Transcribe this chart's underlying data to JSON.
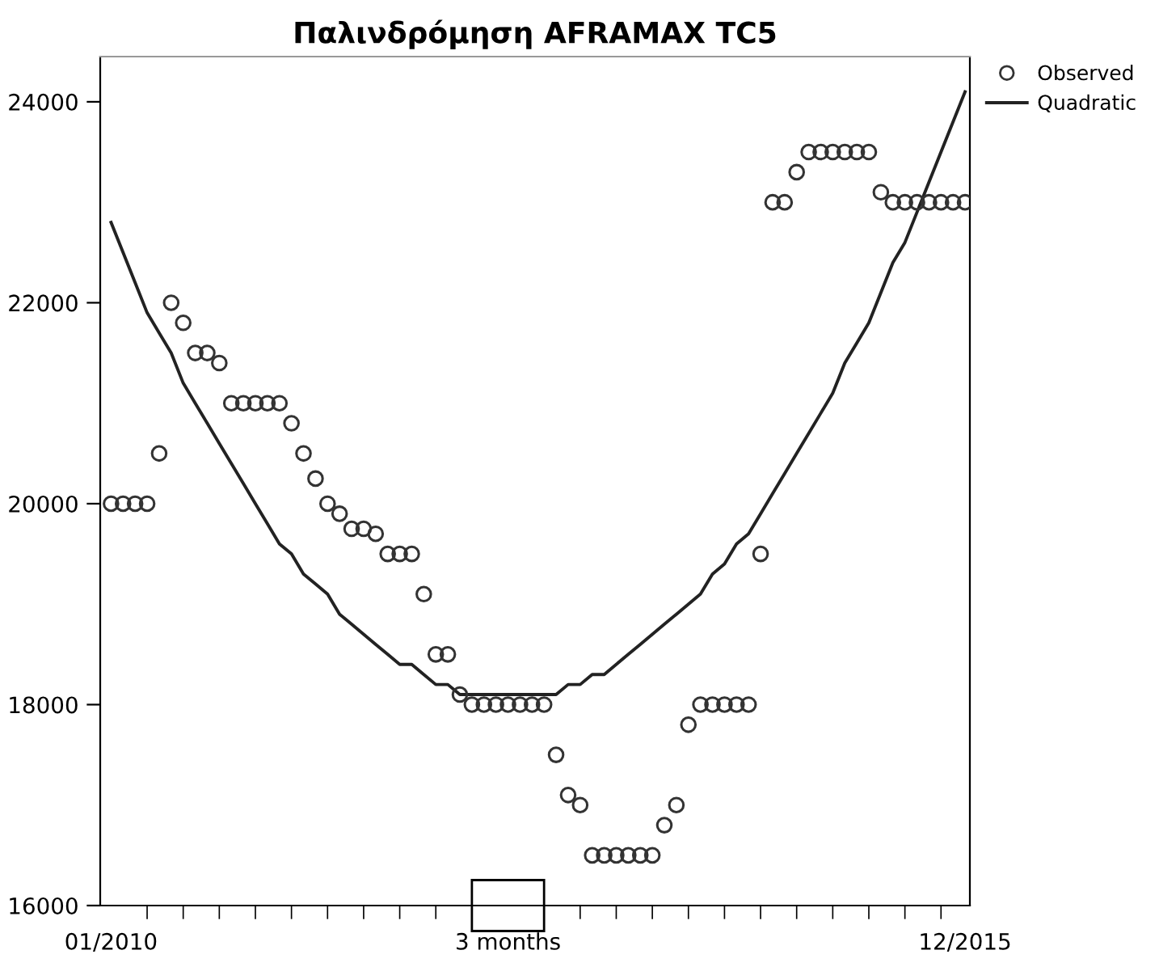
{
  "chart_data": {
    "type": "scatter",
    "title": "Παλινδρόμηση AFRAMAX TC5",
    "categories": [
      "01/2010",
      null,
      null,
      null,
      null,
      null,
      null,
      null,
      null,
      null,
      null,
      null,
      null,
      null,
      null,
      null,
      null,
      null,
      null,
      null,
      null,
      null,
      null,
      null,
      null,
      null,
      null,
      null,
      null,
      null,
      null,
      null,
      null,
      "3 months",
      null,
      null,
      null,
      null,
      null,
      null,
      null,
      null,
      null,
      null,
      null,
      null,
      null,
      null,
      null,
      null,
      null,
      null,
      null,
      null,
      null,
      null,
      null,
      null,
      null,
      null,
      null,
      null,
      null,
      null,
      null,
      null,
      null,
      null,
      null,
      null,
      null,
      "12/2015"
    ],
    "series": [
      {
        "name": "Observed",
        "color": "#333333",
        "marker": "circle",
        "values": [
          20000,
          20000,
          20000,
          20000,
          20500,
          22000,
          21800,
          21500,
          21500,
          21400,
          21000,
          21000,
          21000,
          21000,
          21000,
          20800,
          20500,
          20250,
          20000,
          19900,
          19750,
          19750,
          19700,
          19500,
          19500,
          19500,
          19100,
          18500,
          18500,
          18100,
          18000,
          18000,
          18000,
          18000,
          18000,
          18000,
          18000,
          17500,
          17100,
          17000,
          16500,
          16500,
          16500,
          16500,
          16500,
          16500,
          16800,
          17000,
          17800,
          18000,
          18000,
          18000,
          18000,
          18000,
          19500,
          23000,
          23000,
          23300,
          23500,
          23500,
          23500,
          23500,
          23500,
          23500,
          23100,
          23000,
          23000,
          23000,
          23000,
          23000,
          23000,
          23000
        ]
      },
      {
        "name": "Quadratic",
        "type": "line",
        "color": "#222222",
        "line_style": "solid",
        "marker": "none",
        "values": [
          22800,
          22500,
          22200,
          21900,
          21700,
          21500,
          21200,
          21000,
          20800,
          20600,
          20400,
          20200,
          20000,
          19800,
          19600,
          19500,
          19300,
          19200,
          19100,
          18900,
          18800,
          18700,
          18600,
          18500,
          18400,
          18400,
          18300,
          18200,
          18200,
          18100,
          18100,
          18100,
          18100,
          18100,
          18100,
          18100,
          18100,
          18100,
          18200,
          18200,
          18300,
          18300,
          18400,
          18500,
          18600,
          18700,
          18800,
          18900,
          19000,
          19100,
          19300,
          19400,
          19600,
          19700,
          19900,
          20100,
          20300,
          20500,
          20700,
          20900,
          21100,
          21400,
          21600,
          21800,
          22100,
          22400,
          22600,
          22900,
          23200,
          23500,
          23800,
          24100
        ]
      }
    ],
    "ylim": [
      16000,
      24450
    ],
    "yticks": [
      16000,
      18000,
      20000,
      22000,
      24000
    ],
    "grid": false,
    "legend": "top right"
  }
}
